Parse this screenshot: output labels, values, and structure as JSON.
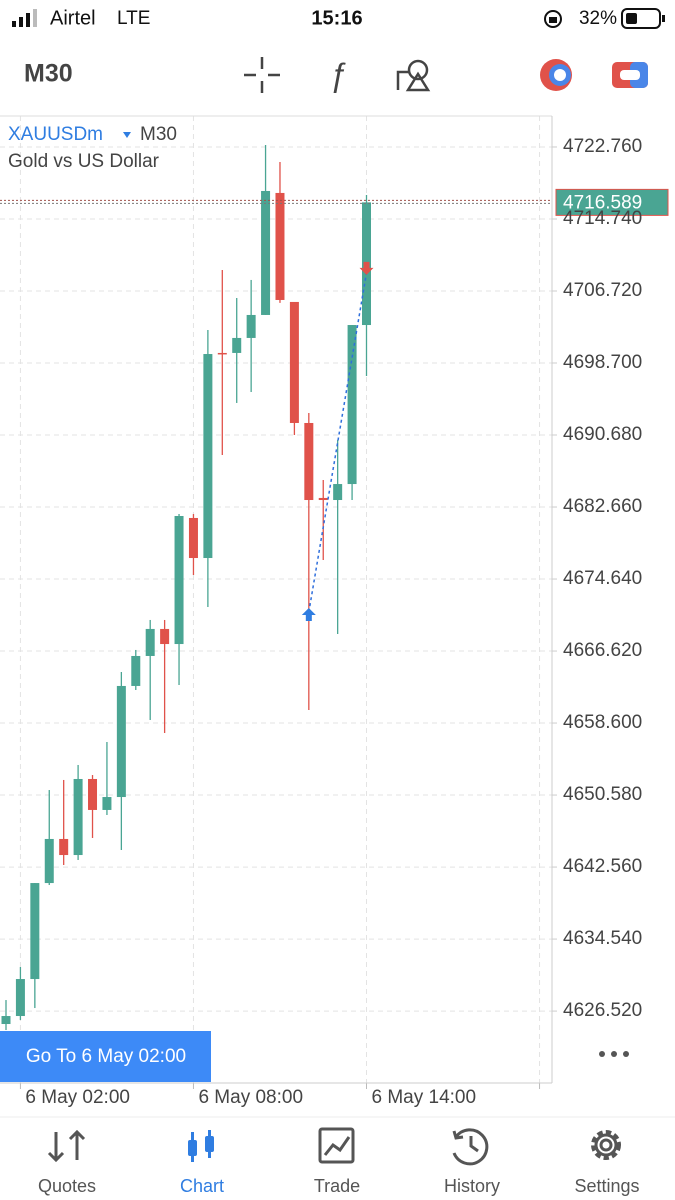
{
  "status_bar": {
    "carrier": "Airtel",
    "network": "LTE",
    "time": "15:16",
    "battery": "32%"
  },
  "toolbar": {
    "timeframe": "M30"
  },
  "chart_data": {
    "type": "candlestick",
    "symbol": "XAUUSDm",
    "timeframe": "M30",
    "subtitle": "Gold vs US Dollar",
    "categories": [
      null,
      "6 May 02:00",
      null,
      null,
      null,
      null,
      null,
      null,
      null,
      null,
      null,
      null,
      null,
      "6 May 08:00",
      null,
      null,
      null,
      null,
      null,
      null,
      null,
      null,
      null,
      null,
      null,
      "6 May 14:00"
    ],
    "open": [
      4625.08,
      4625.97,
      4630.09,
      4640.78,
      4645.69,
      4643.9,
      4652.37,
      4648.92,
      4650.36,
      4662.73,
      4666.07,
      4669.08,
      4667.4,
      4681.44,
      4676.98,
      4699.82,
      4699.82,
      4701.49,
      4704.05,
      4717.64,
      4705.5,
      4692.02,
      4683.67,
      4683.44,
      4685.22,
      4702.93
    ],
    "high": [
      4627.75,
      4631.43,
      4640.78,
      4651.14,
      4652.26,
      4653.93,
      4652.81,
      4656.49,
      4664.29,
      4666.74,
      4670.08,
      4670.08,
      4681.88,
      4681.88,
      4702.38,
      4709.06,
      4705.94,
      4707.95,
      4722.98,
      4721.09,
      4705.5,
      4693.13,
      4685.67,
      4690.13,
      4702.93,
      4717.41
    ],
    "low": [
      4624.41,
      4625.53,
      4626.86,
      4640.56,
      4642.79,
      4643.35,
      4645.8,
      4648.36,
      4644.46,
      4662.28,
      4658.94,
      4657.49,
      4662.84,
      4675.09,
      4671.53,
      4688.45,
      4694.25,
      4695.47,
      4704.05,
      4705.39,
      4690.68,
      4660.05,
      4676.76,
      4668.52,
      4683.44,
      4697.25
    ],
    "close": [
      4625.97,
      4630.09,
      4640.78,
      4645.69,
      4643.9,
      4652.37,
      4648.92,
      4650.36,
      4662.73,
      4666.07,
      4669.08,
      4667.4,
      4681.66,
      4676.98,
      4699.7,
      4699.7,
      4701.49,
      4704.05,
      4717.86,
      4705.72,
      4692.02,
      4683.44,
      4683.44,
      4685.22,
      4702.93,
      4716.59
    ],
    "up_color": "#4aa593",
    "down_color": "#e0524a",
    "ylim": [
      4618.51,
      4726.21
    ],
    "yticks": [
      {
        "value": 4722.76,
        "label": "4722.760"
      },
      {
        "value": 4714.74,
        "label": "4714.740"
      },
      {
        "value": 4706.72,
        "label": "4706.720"
      },
      {
        "value": 4698.7,
        "label": "4698.700"
      },
      {
        "value": 4690.68,
        "label": "4690.680"
      },
      {
        "value": 4682.66,
        "label": "4682.660"
      },
      {
        "value": 4674.64,
        "label": "4674.640"
      },
      {
        "value": 4666.62,
        "label": "4666.620"
      },
      {
        "value": 4658.6,
        "label": "4658.600"
      },
      {
        "value": 4650.58,
        "label": "4650.580"
      },
      {
        "value": 4642.56,
        "label": "4642.560"
      },
      {
        "value": 4634.54,
        "label": "4634.540"
      },
      {
        "value": 4626.52,
        "label": "4626.520"
      }
    ],
    "grid": true,
    "current_price": 4716.589,
    "buy_marker": {
      "index": 21,
      "price": 4670.97
    },
    "sell_marker": {
      "index": 25,
      "price": 4708.74
    }
  },
  "goto_button": "Go To 6 May 02:00",
  "tabs": [
    "Quotes",
    "Chart",
    "Trade",
    "History",
    "Settings"
  ],
  "active_tab": 1
}
